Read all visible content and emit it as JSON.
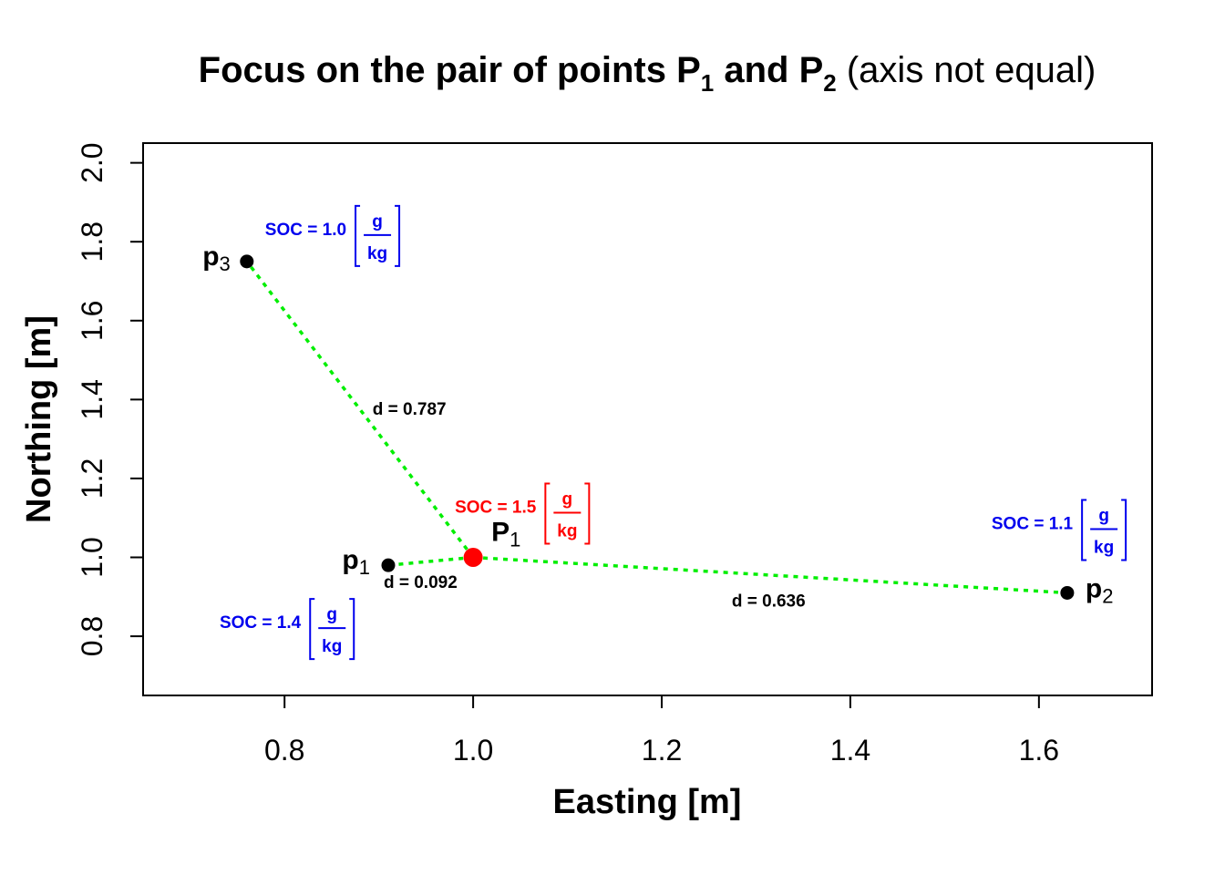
{
  "title": {
    "bold_prefix": "Focus on the pair of points P",
    "sub1": "1",
    "bold_mid": " and P",
    "sub2": "2",
    "normal_suffix": " (axis not equal)"
  },
  "colors": {
    "line": "#00ee00",
    "highlight": "#ff0000",
    "label_soc": "#0000ee",
    "text": "#000000"
  },
  "chart_data": {
    "type": "scatter",
    "xlabel": "Easting [m]",
    "ylabel": "Northing [m]",
    "xlim": [
      0.65,
      1.72
    ],
    "ylim": [
      0.65,
      2.05
    ],
    "xticks": [
      0.8,
      1.0,
      1.2,
      1.4,
      1.6
    ],
    "xtick_labels": [
      "0.8",
      "1.0",
      "1.2",
      "1.4",
      "1.6"
    ],
    "yticks": [
      0.8,
      1.0,
      1.2,
      1.4,
      1.6,
      1.8,
      2.0
    ],
    "ytick_labels": [
      "0.8",
      "1.0",
      "1.2",
      "1.4",
      "1.6",
      "1.8",
      "2.0"
    ],
    "grid": false,
    "target": {
      "name": "P",
      "sub": "1",
      "x": 1.0,
      "y": 1.0,
      "soc_text": "SOC = 1.5",
      "unit_num": "g",
      "unit_den": "kg"
    },
    "points": [
      {
        "name": "p",
        "sub": "1",
        "x": 0.91,
        "y": 0.98,
        "soc_text": "SOC = 1.4",
        "unit_num": "g",
        "unit_den": "kg",
        "dist_text": "d = 0.092"
      },
      {
        "name": "p",
        "sub": "2",
        "x": 1.63,
        "y": 0.91,
        "soc_text": "SOC = 1.1",
        "unit_num": "g",
        "unit_den": "kg",
        "dist_text": "d = 0.636"
      },
      {
        "name": "p",
        "sub": "3",
        "x": 0.76,
        "y": 1.75,
        "soc_text": "SOC = 1.0",
        "unit_num": "g",
        "unit_den": "kg",
        "dist_text": "d = 0.787"
      }
    ]
  }
}
